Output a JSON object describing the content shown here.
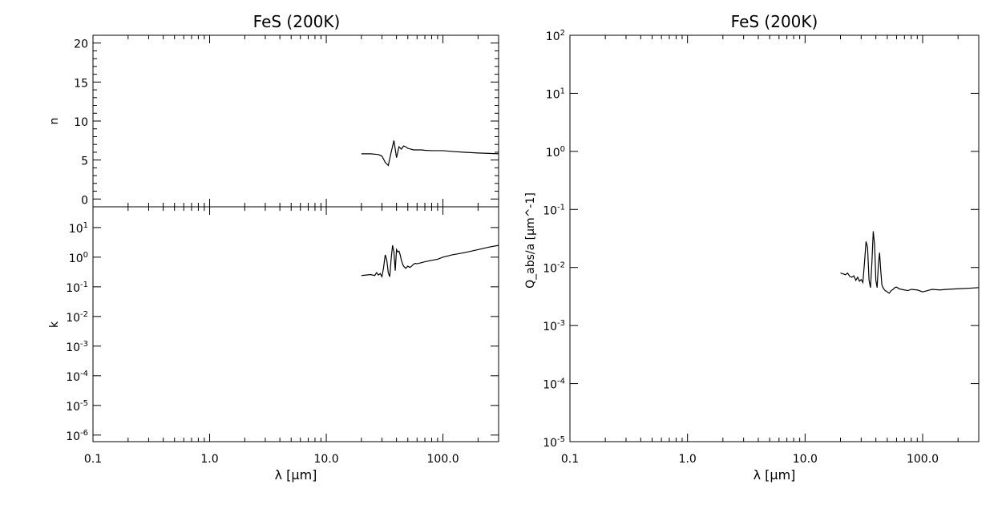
{
  "chart_data": [
    {
      "type": "line",
      "title": "FeS (200K)",
      "xlabel": "λ [μm]",
      "ylabel": "n",
      "xscale": "log",
      "xlim": [
        0.1,
        300
      ],
      "ylim": [
        -1,
        21
      ],
      "xticks": [
        "0.1",
        "1.0",
        "10.0",
        "100.0"
      ],
      "yticks": [
        "0",
        "5",
        "10",
        "15",
        "20"
      ],
      "series": [
        {
          "x": [
            20,
            24,
            28,
            30,
            32,
            34,
            36,
            38,
            40,
            42,
            44,
            46,
            48,
            50,
            53,
            56,
            60,
            65,
            70,
            80,
            90,
            100,
            120,
            150,
            200,
            250,
            300
          ],
          "y": [
            5.8,
            5.8,
            5.7,
            5.5,
            4.7,
            4.3,
            6.0,
            7.5,
            5.3,
            6.7,
            6.4,
            6.8,
            6.7,
            6.5,
            6.4,
            6.3,
            6.3,
            6.3,
            6.25,
            6.2,
            6.2,
            6.2,
            6.1,
            6.0,
            5.9,
            5.85,
            5.8
          ]
        }
      ]
    },
    {
      "type": "line",
      "title": "",
      "xlabel": "λ [μm]",
      "ylabel": "k",
      "xscale": "log",
      "yscale": "log",
      "xlim": [
        0.1,
        300
      ],
      "ylim": [
        6e-07,
        50
      ],
      "xticks": [
        "0.1",
        "1.0",
        "10.0",
        "100.0"
      ],
      "yticks": [
        "10^-6",
        "10^-5",
        "10^-4",
        "10^-3",
        "10^-2",
        "10^-1",
        "10^0",
        "10^1"
      ],
      "series": [
        {
          "x": [
            20,
            22,
            24,
            26,
            27,
            28,
            29,
            30,
            31,
            32,
            33,
            34,
            35,
            36,
            37,
            38,
            39,
            40,
            41,
            42,
            43,
            44,
            45,
            46,
            48,
            50,
            52,
            54,
            56,
            58,
            60,
            65,
            70,
            80,
            90,
            100,
            120,
            150,
            200,
            250,
            300
          ],
          "y": [
            0.24,
            0.25,
            0.26,
            0.24,
            0.3,
            0.25,
            0.28,
            0.22,
            0.45,
            1.2,
            0.8,
            0.3,
            0.22,
            0.9,
            2.5,
            1.5,
            0.35,
            1.8,
            1.5,
            1.6,
            1.2,
            0.8,
            0.6,
            0.5,
            0.42,
            0.5,
            0.45,
            0.5,
            0.58,
            0.62,
            0.6,
            0.65,
            0.7,
            0.78,
            0.85,
            1.0,
            1.2,
            1.4,
            1.8,
            2.2,
            2.5
          ]
        }
      ]
    },
    {
      "type": "line",
      "title": "FeS (200K)",
      "xlabel": "λ [μm]",
      "ylabel": "Q_abs/a [μm^-1]",
      "xscale": "log",
      "yscale": "log",
      "xlim": [
        0.1,
        300
      ],
      "ylim": [
        1e-05,
        100
      ],
      "xticks": [
        "0.1",
        "1.0",
        "10.0",
        "100.0"
      ],
      "yticks": [
        "10^-5",
        "10^-4",
        "10^-3",
        "10^-2",
        "10^-1",
        "10^0",
        "10^1",
        "10^2"
      ],
      "series": [
        {
          "x": [
            20,
            21,
            22,
            23,
            24,
            25,
            26,
            27,
            28,
            29,
            30,
            31,
            32,
            33,
            34,
            35,
            36,
            37,
            38,
            39,
            40,
            41,
            42,
            43,
            44,
            45,
            46,
            47,
            48,
            50,
            52,
            54,
            56,
            58,
            60,
            63,
            66,
            70,
            75,
            80,
            90,
            100,
            110,
            120,
            140,
            160,
            200,
            250,
            300
          ],
          "y": [
            0.008,
            0.0078,
            0.0075,
            0.008,
            0.007,
            0.0068,
            0.0072,
            0.006,
            0.0068,
            0.0058,
            0.0062,
            0.0055,
            0.012,
            0.028,
            0.022,
            0.006,
            0.0045,
            0.012,
            0.042,
            0.025,
            0.006,
            0.0045,
            0.011,
            0.018,
            0.009,
            0.005,
            0.0045,
            0.0042,
            0.004,
            0.0038,
            0.0036,
            0.004,
            0.0042,
            0.0045,
            0.0046,
            0.0043,
            0.0042,
            0.0041,
            0.004,
            0.0042,
            0.0041,
            0.0038,
            0.004,
            0.0042,
            0.0041,
            0.0042,
            0.0043,
            0.0044,
            0.0045
          ]
        }
      ]
    }
  ]
}
